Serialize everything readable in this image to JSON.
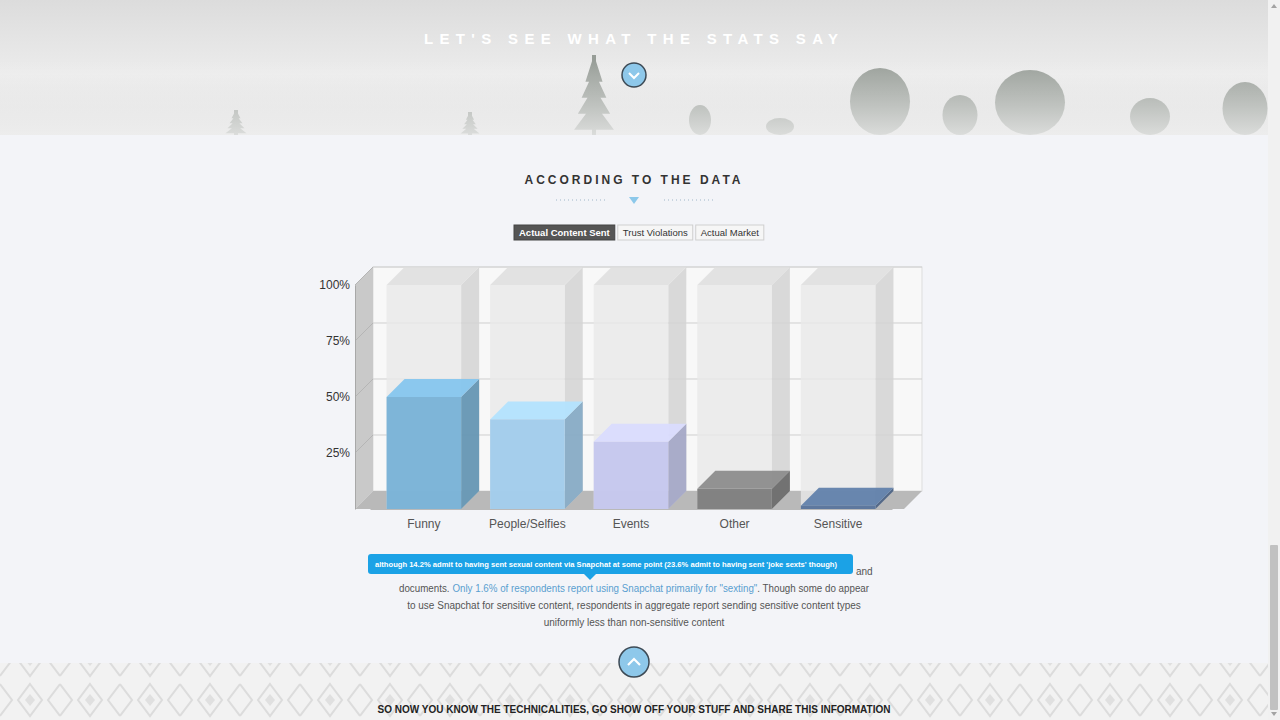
{
  "page": {
    "header": "LET'S SEE WHAT THE STATS SAY",
    "heading": "ACCORDING TO THE DATA",
    "tabs": [
      "Actual Content Sent",
      "Trust Violations",
      "Actual Market"
    ],
    "tooltip": "although 14.2% admit to having sent sexual content via Snapchat at some point (23.6% admit to having sent 'joke sexts' though)",
    "note": {
      "line2_end": "and",
      "lead": "documents.",
      "link": "Only 1.6% of respondents report using Snapchat primarily for \"sexting\"",
      "lines": [
        ". Though some do appear",
        "to use Snapchat for sensitive content, respondents in aggregate report sending sensitive content types",
        "uniformly less than non-sensitive content"
      ]
    },
    "footer": "SO NOW YOU KNOW THE TECHNICALITIES, GO SHOW OFF YOUR STUFF AND SHARE THIS INFORMATION"
  },
  "chart_data": {
    "type": "bar",
    "categories": [
      "Funny",
      "People/Selfies",
      "Events",
      "Other",
      "Sensitive"
    ],
    "values": [
      50,
      40,
      30,
      9,
      1.5
    ],
    "colors": [
      "#74b0d6",
      "#9ecbec",
      "#c3c6ee",
      "#7a7a7a",
      "#526f98"
    ],
    "ylim": [
      0,
      100
    ],
    "yticks": [
      {
        "value": 25,
        "label": "25%"
      },
      {
        "value": 50,
        "label": "50%"
      },
      {
        "value": 75,
        "label": "75%"
      },
      {
        "value": 100,
        "label": "100%"
      }
    ],
    "grid": true
  }
}
